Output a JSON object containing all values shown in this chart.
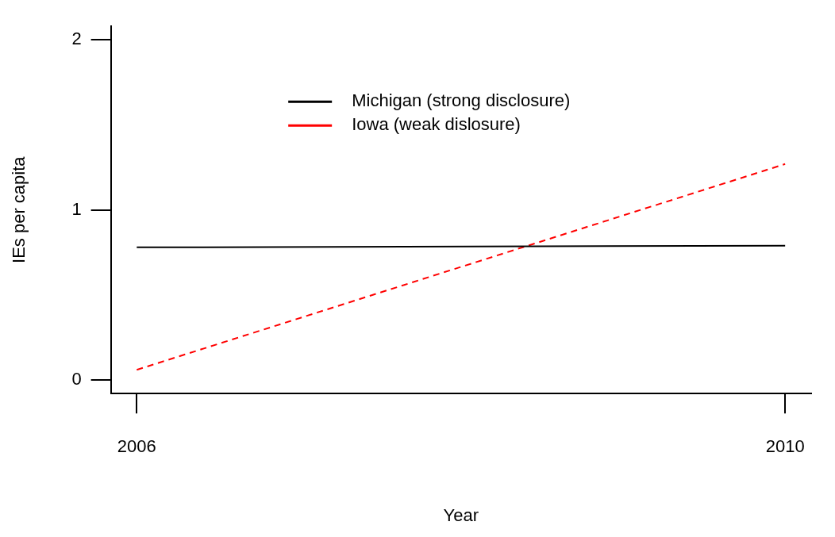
{
  "chart_data": {
    "type": "line",
    "xlabel": "Year",
    "ylabel": "IEs per capita",
    "x": [
      2006,
      2010
    ],
    "xlim": [
      2005.84,
      2010.16
    ],
    "xticks": [
      2006,
      2010
    ],
    "ylim": [
      -0.08,
      2.08
    ],
    "yticks": [
      0,
      1,
      2
    ],
    "grid": false,
    "legend": "top",
    "marker": "none",
    "series": [
      {
        "name": "Michigan (strong disclosure)",
        "color": "#000000",
        "values": [
          0.78,
          0.79
        ],
        "line_style": "solid"
      },
      {
        "name": "Iowa (weak dislosure)",
        "color": "#ff0000",
        "values": [
          0.06,
          1.27
        ],
        "line_style": "dashed"
      }
    ]
  }
}
